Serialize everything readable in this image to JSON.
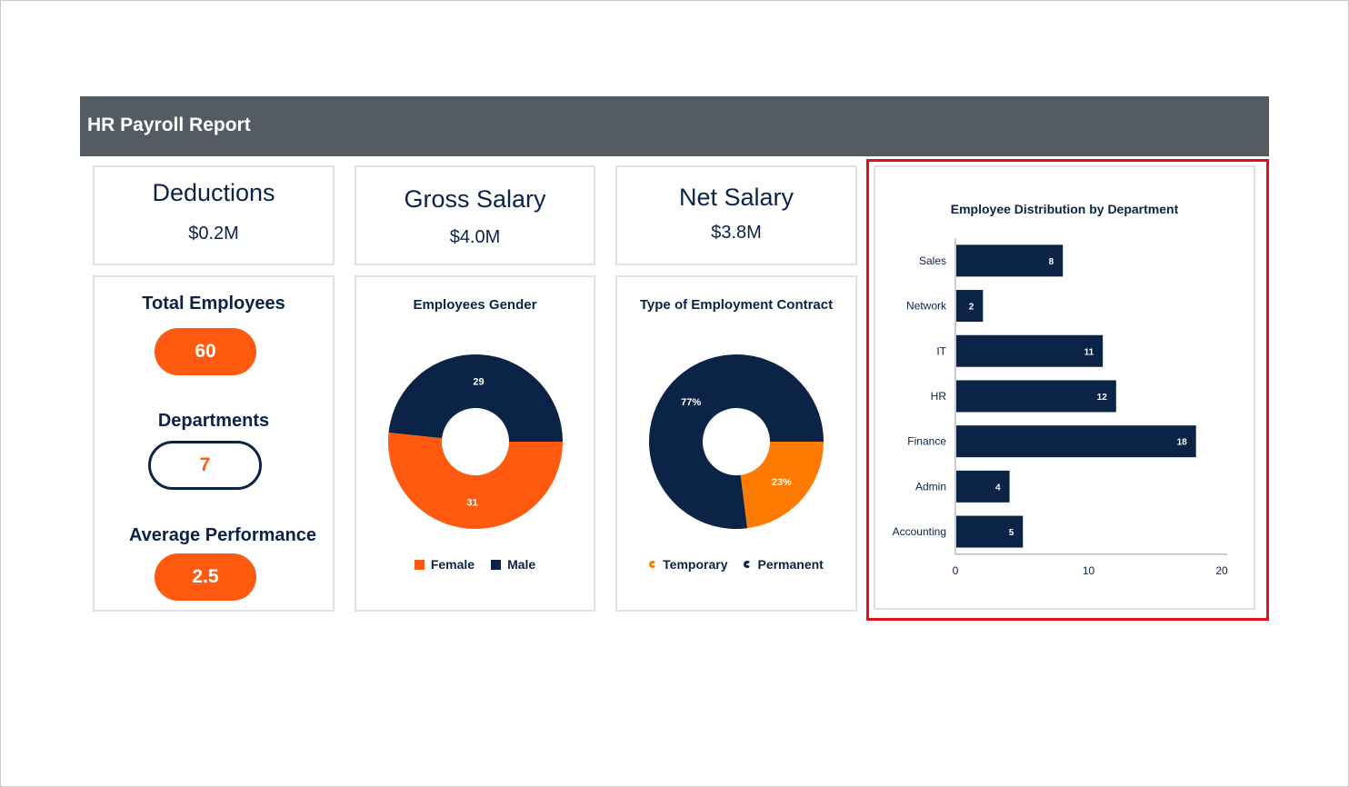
{
  "header": {
    "title": "HR Payroll Report"
  },
  "kpis": {
    "deductions": {
      "label": "Deductions",
      "value": "$0.2M"
    },
    "gross": {
      "label": "Gross Salary",
      "value": "$4.0M"
    },
    "net": {
      "label": "Net Salary",
      "value": "$3.8M"
    }
  },
  "stats": {
    "total_employees": {
      "label": "Total Employees",
      "value": "60"
    },
    "departments": {
      "label": "Departments",
      "value": "7"
    },
    "avg_performance": {
      "label": "Average Performance",
      "value": "2.5"
    }
  },
  "colors": {
    "navy": "#0b2347",
    "orange": "#ff5a0f",
    "orange_light": "#ff7a00",
    "header": "#545b63",
    "highlight": "#e3101b"
  },
  "chart_data": [
    {
      "type": "pie",
      "title": "Employees Gender",
      "categories": [
        "Female",
        "Male"
      ],
      "values": [
        31,
        29
      ],
      "labels": [
        "31",
        "29"
      ],
      "colors": [
        "#ff5a0f",
        "#0b2347"
      ],
      "legend": "bottom"
    },
    {
      "type": "pie",
      "title": "Type of Employment Contract",
      "categories": [
        "Temporary",
        "Permanent"
      ],
      "values": [
        23,
        77
      ],
      "labels": [
        "23%",
        "77%"
      ],
      "colors": [
        "#ff7a00",
        "#0b2347"
      ],
      "legend": "bottom"
    },
    {
      "type": "bar",
      "orientation": "horizontal",
      "title": "Employee Distribution by Department",
      "categories": [
        "Sales",
        "Network",
        "IT",
        "HR",
        "Finance",
        "Admin",
        "Accounting"
      ],
      "values": [
        8,
        2,
        11,
        12,
        18,
        4,
        5
      ],
      "xlim": [
        0,
        20
      ],
      "xticks": [
        "0",
        "10",
        "20"
      ],
      "grid": false,
      "legend": "none"
    }
  ]
}
